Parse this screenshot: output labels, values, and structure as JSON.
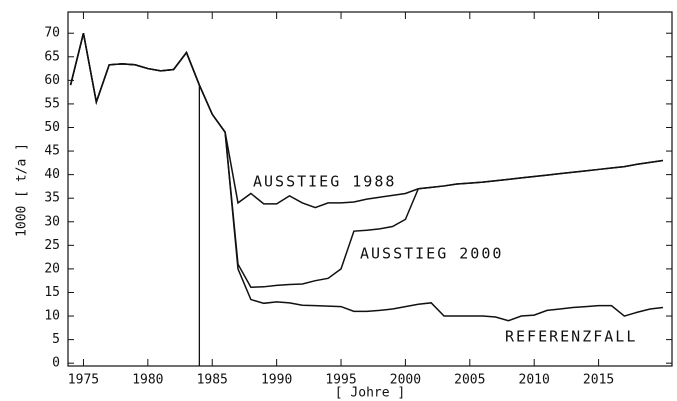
{
  "chart_data": {
    "type": "line",
    "xlabel": "[ Johre ]",
    "ylabel": "1000 [ t/a ]",
    "x": [
      1974,
      1975,
      1976,
      1977,
      1978,
      1979,
      1980,
      1981,
      1982,
      1983,
      1984,
      1985,
      1986,
      1987,
      1988,
      1989,
      1990,
      1991,
      1992,
      1993,
      1994,
      1995,
      1996,
      1997,
      1998,
      1999,
      2000,
      2001,
      2002,
      2003,
      2004,
      2005,
      2006,
      2007,
      2008,
      2009,
      2010,
      2011,
      2012,
      2013,
      2014,
      2015,
      2016,
      2017,
      2018,
      2019,
      2020
    ],
    "series": [
      {
        "name": "AUSSTIEG 1988",
        "color": "#111111",
        "values": [
          59,
          70,
          55.4,
          63.3,
          63.5,
          63.3,
          62.5,
          62,
          62.3,
          65.9,
          59,
          52.8,
          49,
          34,
          36,
          33.8,
          33.8,
          35.5,
          34,
          33,
          34,
          34,
          34.2,
          34.8,
          35.2,
          35.6,
          36,
          37,
          37.3,
          37.6,
          38,
          38.2,
          38.4,
          38.7,
          39,
          39.3,
          39.6,
          39.9,
          40.2,
          40.5,
          40.8,
          41.1,
          41.4,
          41.7,
          42.2,
          42.6,
          43
        ]
      },
      {
        "name": "AUSSTIEG 2000",
        "color": "#111111",
        "values": [
          59,
          70,
          55.4,
          63.3,
          63.5,
          63.3,
          62.5,
          62,
          62.3,
          65.9,
          59,
          52.8,
          49,
          21,
          16.1,
          16.2,
          16.5,
          16.7,
          16.8,
          17.5,
          18,
          20,
          28,
          28.2,
          28.5,
          29,
          30.5,
          37,
          37.3,
          37.6,
          38,
          38.2,
          38.4,
          38.7,
          39,
          39.3,
          39.6,
          39.9,
          40.2,
          40.5,
          40.8,
          41.1,
          41.4,
          41.7,
          42.2,
          42.6,
          43
        ]
      },
      {
        "name": "REFERENZFALL",
        "color": "#111111",
        "values": [
          59,
          70,
          55.4,
          63.3,
          63.5,
          63.3,
          62.5,
          62,
          62.3,
          65.9,
          59,
          52.8,
          49,
          20,
          13.5,
          12.7,
          13,
          12.8,
          12.3,
          12.2,
          12.1,
          12,
          11,
          11,
          11.2,
          11.5,
          12,
          12.5,
          12.8,
          10,
          10,
          10,
          10,
          9.8,
          9,
          10,
          10.2,
          11.2,
          11.5,
          11.8,
          12,
          12.2,
          12.2,
          10,
          10.8,
          11.5,
          11.8
        ]
      }
    ],
    "vline": 1984,
    "xlim": [
      1973.8,
      2020.7
    ],
    "xticks": [
      1975,
      1980,
      1985,
      1990,
      1995,
      2000,
      2005,
      2010,
      2015
    ],
    "ylim": [
      -0.6,
      74.5
    ],
    "yticks": [
      0,
      5,
      10,
      15,
      20,
      25,
      30,
      35,
      40,
      45,
      50,
      55,
      60,
      65,
      70
    ]
  }
}
